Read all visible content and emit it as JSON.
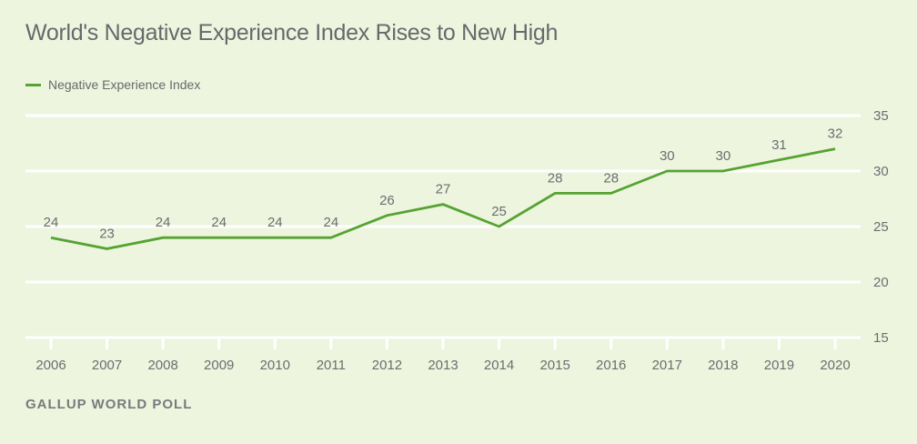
{
  "chart_data": {
    "type": "line",
    "title": "World's Negative Experience Index Rises to New High",
    "source": "GALLUP WORLD POLL",
    "xlabel": "",
    "ylabel": "",
    "x": [
      "2006",
      "2007",
      "2008",
      "2009",
      "2010",
      "2011",
      "2012",
      "2013",
      "2014",
      "2015",
      "2016",
      "2017",
      "2018",
      "2019",
      "2020"
    ],
    "series": [
      {
        "name": "Negative Experience Index",
        "color": "#55a332",
        "values": [
          24,
          23,
          24,
          24,
          24,
          24,
          26,
          27,
          25,
          28,
          28,
          30,
          30,
          31,
          32
        ]
      }
    ],
    "ylim": [
      15,
      35
    ],
    "yticks": [
      "15",
      "20",
      "25",
      "30",
      "35"
    ],
    "grid": true,
    "legend": "top-left",
    "y_axis_position": "right"
  }
}
